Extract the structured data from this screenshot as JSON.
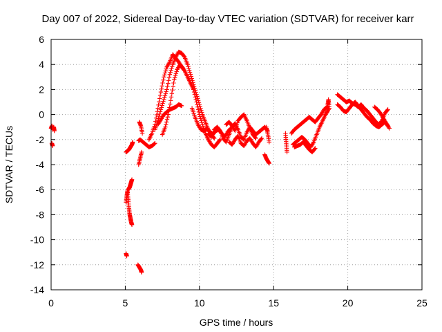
{
  "chart_data": {
    "type": "scatter",
    "title": "Day 007 of 2022, Sidereal Day-to-day VTEC variation (SDTVAR) for receiver karr",
    "xlabel": "GPS time / hours",
    "ylabel": "SDTVAR / TECUs",
    "xlim": [
      0,
      25
    ],
    "ylim": [
      -14,
      6
    ],
    "xticks": [
      0,
      5,
      10,
      15,
      20,
      25
    ],
    "yticks": [
      -14,
      -12,
      -10,
      -8,
      -6,
      -4,
      -2,
      0,
      2,
      4,
      6
    ],
    "grid": true,
    "marker": "+",
    "color": "#ff0000",
    "series": [
      {
        "name": "SDTVAR",
        "segments": [
          {
            "x": [
              0.0,
              0.06,
              0.12,
              0.18,
              0.22
            ],
            "y": [
              -1.1,
              -0.9,
              -1.2,
              -1.0,
              -1.3
            ]
          },
          {
            "x": [
              0.05,
              0.1
            ],
            "y": [
              -2.3,
              -2.5
            ]
          },
          {
            "x": [
              5.05,
              5.15,
              5.25,
              5.35,
              5.45,
              5.5
            ],
            "y": [
              -3.0,
              -2.9,
              -2.8,
              -2.6,
              -2.4,
              -2.2
            ]
          },
          {
            "x": [
              5.05,
              5.1,
              5.15,
              5.2,
              5.25,
              5.3,
              5.35,
              5.4,
              5.45
            ],
            "y": [
              -7.0,
              -6.5,
              -6.1,
              -6.8,
              -7.5,
              -8.0,
              -8.3,
              -8.6,
              -8.8
            ]
          },
          {
            "x": [
              5.2,
              5.25,
              5.3,
              5.35,
              5.4,
              5.45
            ],
            "y": [
              -6.0,
              -5.9,
              -5.8,
              -5.6,
              -5.4,
              -5.2
            ]
          },
          {
            "x": [
              5.05,
              5.1
            ],
            "y": [
              -11.1,
              -11.3
            ]
          },
          {
            "x": [
              5.85,
              5.95,
              6.05,
              6.1
            ],
            "y": [
              -12.0,
              -12.2,
              -12.4,
              -12.6
            ]
          },
          {
            "x": [
              5.9,
              6.0,
              6.1
            ],
            "y": [
              -4.0,
              -3.5,
              -3.0
            ]
          },
          {
            "x": [
              5.95,
              6.05,
              6.15
            ],
            "y": [
              -0.6,
              -0.9,
              -1.5
            ]
          },
          {
            "x": [
              5.9,
              6.0,
              6.2,
              6.4,
              6.6,
              6.8,
              7.0
            ],
            "y": [
              -2.1,
              -2.0,
              -2.2,
              -2.4,
              -2.6,
              -2.5,
              -2.3
            ]
          },
          {
            "x": [
              6.6,
              6.8,
              7.0,
              7.2,
              7.4,
              7.6,
              7.8,
              8.0,
              8.2,
              8.4,
              8.6,
              8.8,
              9.0,
              9.2,
              9.4,
              9.6,
              9.8,
              10.0,
              10.2,
              10.4,
              10.6,
              10.8,
              11.0,
              11.2,
              11.4
            ],
            "y": [
              -2.0,
              -1.5,
              -0.8,
              0.5,
              1.8,
              3.0,
              3.8,
              4.2,
              4.8,
              4.5,
              4.2,
              3.8,
              3.5,
              3.0,
              2.5,
              2.0,
              1.0,
              0.0,
              -0.8,
              -1.5,
              -2.0,
              -2.4,
              -2.6,
              -2.3,
              -2.0
            ]
          },
          {
            "x": [
              7.0,
              7.2,
              7.4,
              7.6,
              7.8,
              8.0,
              8.2,
              8.4,
              8.6,
              8.8,
              9.0,
              9.2,
              9.4,
              9.6,
              9.8,
              10.0,
              10.2,
              10.4,
              10.6,
              10.8,
              11.0
            ],
            "y": [
              -1.2,
              -0.5,
              0.4,
              1.2,
              2.0,
              3.2,
              4.0,
              4.6,
              5.0,
              4.9,
              4.6,
              4.0,
              3.2,
              2.4,
              1.6,
              0.8,
              0.0,
              -0.6,
              -1.2,
              -1.6,
              -1.9
            ]
          },
          {
            "x": [
              7.2,
              7.4,
              7.6,
              7.8,
              8.0,
              8.2,
              8.4,
              8.6,
              8.8
            ],
            "y": [
              -0.8,
              -0.4,
              0.0,
              0.2,
              0.4,
              0.5,
              0.6,
              0.8,
              0.7
            ]
          },
          {
            "x": [
              7.5,
              7.7,
              7.9,
              8.1,
              8.3,
              8.5,
              8.7,
              8.9
            ],
            "y": [
              -1.6,
              -1.0,
              0.0,
              1.4,
              2.8,
              3.6,
              4.0,
              3.7
            ]
          },
          {
            "x": [
              9.5,
              9.7,
              9.9,
              10.1,
              10.3,
              10.5,
              10.7,
              10.9,
              11.1,
              11.3,
              11.5,
              11.7,
              11.9,
              12.1
            ],
            "y": [
              0.5,
              -0.2,
              -0.8,
              -1.2,
              -1.3,
              -1.1,
              -1.4,
              -1.6,
              -1.3,
              -1.2,
              -1.5,
              -1.8,
              -1.4,
              -1.1
            ]
          },
          {
            "x": [
              10.6,
              10.8,
              11.0,
              11.2,
              11.4,
              11.6,
              11.8,
              12.0,
              12.2,
              12.4,
              12.6,
              12.8,
              13.0,
              13.2,
              13.4,
              13.6,
              13.8,
              14.0,
              14.2,
              14.4,
              14.6
            ],
            "y": [
              -1.5,
              -1.8,
              -1.2,
              -1.0,
              -1.3,
              -1.9,
              -2.2,
              -1.6,
              -1.0,
              -0.7,
              -1.2,
              -1.8,
              -2.0,
              -1.4,
              -1.0,
              -1.3,
              -1.6,
              -1.4,
              -1.2,
              -1.0,
              -1.3
            ]
          },
          {
            "x": [
              11.8,
              12.0,
              12.2,
              12.4,
              12.6,
              12.8,
              13.0,
              13.2,
              13.4,
              13.6,
              13.8
            ],
            "y": [
              -0.8,
              -0.6,
              -0.9,
              -1.3,
              -0.5,
              -0.2,
              0.0,
              -0.5,
              -1.1,
              -1.6,
              -1.9
            ]
          },
          {
            "x": [
              12.0,
              12.2,
              12.4,
              12.6,
              12.8,
              13.0,
              13.2,
              13.4,
              13.6,
              13.8,
              14.0,
              14.2
            ],
            "y": [
              -2.2,
              -2.4,
              -2.0,
              -1.7,
              -2.3,
              -2.5,
              -2.1,
              -1.9,
              -2.3,
              -2.6,
              -2.2,
              -1.9
            ]
          },
          {
            "x": [
              14.4,
              14.5,
              14.6,
              14.7
            ],
            "y": [
              -3.2,
              -3.5,
              -3.7,
              -3.9
            ]
          },
          {
            "x": [
              14.5,
              14.6,
              14.7
            ],
            "y": [
              -1.0,
              -1.5,
              -2.2
            ]
          },
          {
            "x": [
              15.8,
              15.85,
              15.9
            ],
            "y": [
              -1.5,
              -2.3,
              -3.0
            ]
          },
          {
            "x": [
              16.2,
              16.4,
              16.6,
              16.8,
              17.0,
              17.2,
              17.4,
              17.6,
              17.8,
              18.0,
              18.2,
              18.4,
              18.6
            ],
            "y": [
              -1.5,
              -1.2,
              -1.0,
              -0.8,
              -0.6,
              -0.4,
              -0.2,
              -0.4,
              -0.6,
              -0.3,
              0.0,
              0.4,
              0.6
            ]
          },
          {
            "x": [
              16.3,
              16.5,
              16.7,
              16.9,
              17.1,
              17.3,
              17.5,
              17.7,
              17.9,
              18.1,
              18.3,
              18.5,
              18.7
            ],
            "y": [
              -2.4,
              -2.2,
              -2.0,
              -1.8,
              -2.0,
              -2.3,
              -2.6,
              -2.2,
              -1.6,
              -1.0,
              -0.5,
              0.0,
              0.4
            ]
          },
          {
            "x": [
              16.4,
              16.6,
              16.8,
              17.0,
              17.2,
              17.4,
              17.6,
              17.8
            ],
            "y": [
              -2.6,
              -2.5,
              -2.4,
              -2.2,
              -2.5,
              -2.8,
              -3.0,
              -2.7
            ]
          },
          {
            "x": [
              18.6,
              18.65,
              18.7,
              18.75
            ],
            "y": [
              0.2,
              0.8,
              1.2,
              0.5
            ]
          },
          {
            "x": [
              19.3,
              19.5,
              19.7,
              19.9,
              20.1,
              20.3,
              20.5,
              20.7,
              20.9,
              21.1,
              21.3,
              21.5,
              21.7,
              21.9,
              22.1,
              22.3,
              22.5,
              22.7
            ],
            "y": [
              1.6,
              1.4,
              1.2,
              1.0,
              1.1,
              0.9,
              0.8,
              0.6,
              0.8,
              0.5,
              0.3,
              0.0,
              -0.3,
              -0.6,
              -0.8,
              -0.5,
              0.1,
              0.4
            ]
          },
          {
            "x": [
              19.3,
              19.5,
              19.7,
              19.9,
              20.1,
              20.3,
              20.5,
              20.7,
              20.9,
              21.1,
              21.3,
              21.5,
              21.7,
              21.9,
              22.1,
              22.3,
              22.5,
              22.7
            ],
            "y": [
              0.8,
              0.6,
              0.3,
              0.2,
              0.5,
              0.8,
              1.0,
              0.7,
              0.4,
              0.1,
              -0.2,
              -0.4,
              -0.7,
              -0.9,
              -1.0,
              -0.8,
              -0.6,
              -0.9
            ]
          },
          {
            "x": [
              21.8,
              22.0,
              22.2,
              22.4,
              22.6,
              22.8
            ],
            "y": [
              0.6,
              0.4,
              0.1,
              -0.3,
              -0.7,
              -1.1
            ]
          }
        ]
      }
    ]
  }
}
